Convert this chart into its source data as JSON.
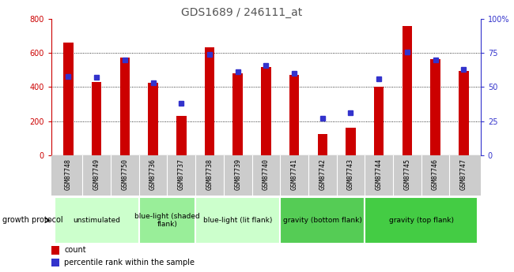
{
  "title": "GDS1689 / 246111_at",
  "samples": [
    "GSM87748",
    "GSM87749",
    "GSM87750",
    "GSM87736",
    "GSM87737",
    "GSM87738",
    "GSM87739",
    "GSM87740",
    "GSM87741",
    "GSM87742",
    "GSM87743",
    "GSM87744",
    "GSM87745",
    "GSM87746",
    "GSM87747"
  ],
  "counts": [
    660,
    430,
    575,
    425,
    230,
    635,
    480,
    520,
    470,
    125,
    160,
    400,
    760,
    565,
    495
  ],
  "percentiles": [
    58,
    57,
    70,
    53,
    38,
    74,
    61,
    66,
    60,
    27,
    31,
    56,
    76,
    70,
    63
  ],
  "bar_color": "#cc0000",
  "percentile_color": "#3333cc",
  "ylim_left": [
    0,
    800
  ],
  "ylim_right": [
    0,
    100
  ],
  "yticks_left": [
    0,
    200,
    400,
    600,
    800
  ],
  "yticks_right": [
    0,
    25,
    50,
    75,
    100
  ],
  "ytick_labels_right": [
    "0",
    "25",
    "50",
    "75",
    "100%"
  ],
  "xtick_bg": "#cccccc",
  "group_display": [
    {
      "label": "unstimulated",
      "start": 0,
      "end": 2,
      "color": "#ccffcc"
    },
    {
      "label": "blue-light (shaded\nflank)",
      "start": 3,
      "end": 4,
      "color": "#99ee99"
    },
    {
      "label": "blue-light (lit flank)",
      "start": 5,
      "end": 7,
      "color": "#ccffcc"
    },
    {
      "label": "gravity (bottom flank)",
      "start": 8,
      "end": 10,
      "color": "#55cc55"
    },
    {
      "label": "gravity (top flank)",
      "start": 11,
      "end": 14,
      "color": "#44cc44"
    }
  ]
}
